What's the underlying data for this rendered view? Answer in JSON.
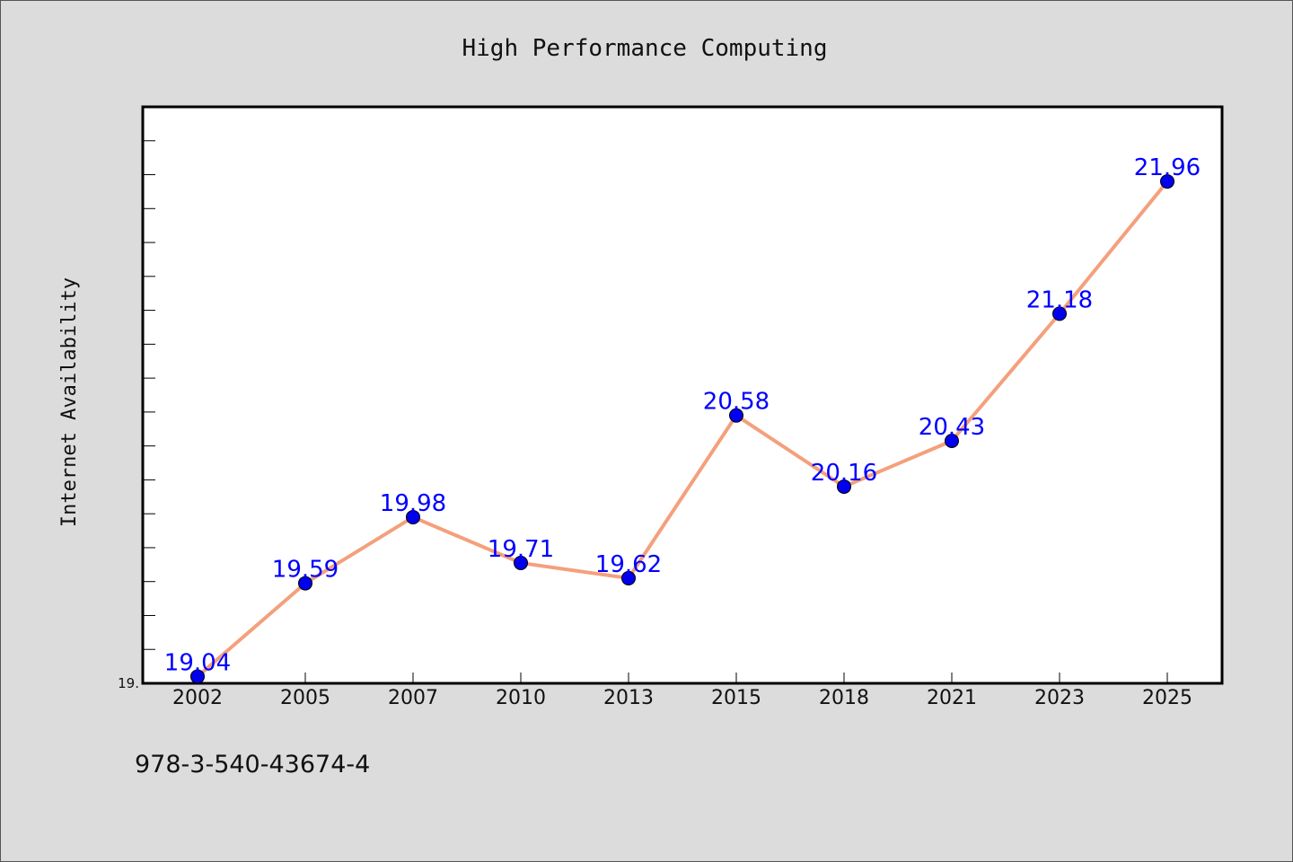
{
  "footnote": "978-3-540-43674-4",
  "colors": {
    "background": "#dcdcdc",
    "plot_background": "#ffffff",
    "line": "#f4a07c",
    "marker": "#0000ee",
    "data_label": "#0000ff"
  },
  "chart_data": {
    "type": "line",
    "title": "High Performance Computing",
    "xlabel": "",
    "ylabel": "Internet Availability",
    "categories": [
      "2002",
      "2005",
      "2007",
      "2010",
      "2013",
      "2015",
      "2018",
      "2021",
      "2023",
      "2025"
    ],
    "series": [
      {
        "values": [
          19.04,
          19.59,
          19.98,
          19.71,
          19.62,
          20.58,
          20.16,
          20.43,
          21.18,
          21.96
        ],
        "labels": [
          "19.04",
          "19.59",
          "19.98",
          "19.71",
          "19.62",
          "20.58",
          "20.16",
          "20.43",
          "21.18",
          "21.96"
        ]
      }
    ],
    "ylim": [
      19.0,
      22.4
    ],
    "ytick_labels": [
      {
        "value": 19.0,
        "text": "19."
      }
    ],
    "minor_tick_step": 0.2,
    "grid": false,
    "legend": "none",
    "markers": "circle"
  }
}
